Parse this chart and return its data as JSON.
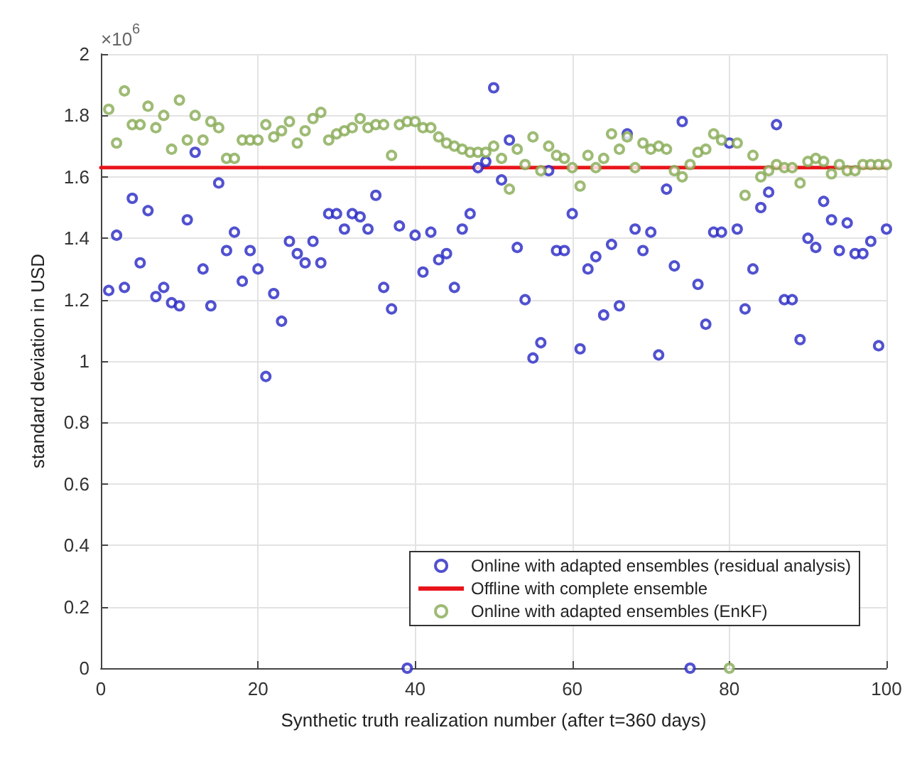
{
  "chart_data": {
    "type": "scatter",
    "xlabel": "Synthetic truth realization number (after t=360 days)",
    "ylabel": "standard deviation in USD",
    "annotations": [
      "×10$^{6}$"
    ],
    "x": [
      1,
      2,
      3,
      4,
      5,
      6,
      7,
      8,
      9,
      10,
      11,
      12,
      13,
      14,
      15,
      16,
      17,
      18,
      19,
      20,
      21,
      22,
      23,
      24,
      25,
      26,
      27,
      28,
      29,
      30,
      31,
      32,
      33,
      34,
      35,
      36,
      37,
      38,
      39,
      40,
      41,
      42,
      43,
      44,
      45,
      46,
      47,
      48,
      49,
      50,
      51,
      52,
      53,
      54,
      55,
      56,
      57,
      58,
      59,
      60,
      61,
      62,
      63,
      64,
      65,
      66,
      67,
      68,
      69,
      70,
      71,
      72,
      73,
      74,
      75,
      76,
      77,
      78,
      79,
      80,
      81,
      82,
      83,
      84,
      85,
      86,
      87,
      88,
      89,
      90,
      91,
      92,
      93,
      94,
      95,
      96,
      97,
      98,
      99,
      100
    ],
    "series": [
      {
        "name": "Online with adapted ensembles (residual analysis)",
        "type": "scatter",
        "marker": "circle",
        "color": "#2525c4",
        "values": [
          1.23,
          1.41,
          1.24,
          1.53,
          1.32,
          1.49,
          1.21,
          1.24,
          1.19,
          1.18,
          1.46,
          1.68,
          1.3,
          1.18,
          1.58,
          1.36,
          1.42,
          1.26,
          1.36,
          1.3,
          0.95,
          1.22,
          1.13,
          1.39,
          1.35,
          1.32,
          1.39,
          1.32,
          1.48,
          1.48,
          1.43,
          1.48,
          1.47,
          1.43,
          1.54,
          1.24,
          1.17,
          1.44,
          0,
          1.41,
          1.29,
          1.42,
          1.33,
          1.35,
          1.24,
          1.43,
          1.48,
          1.63,
          1.65,
          1.89,
          1.59,
          1.72,
          1.37,
          1.2,
          1.01,
          1.06,
          1.62,
          1.36,
          1.36,
          1.48,
          1.04,
          1.3,
          1.34,
          1.15,
          1.38,
          1.18,
          1.74,
          1.43,
          1.36,
          1.42,
          1.02,
          1.56,
          1.31,
          1.78,
          0,
          1.25,
          1.12,
          1.42,
          1.42,
          1.71,
          1.43,
          1.17,
          1.3,
          1.5,
          1.55,
          1.77,
          1.2,
          1.2,
          1.07,
          1.4,
          1.37,
          1.52,
          1.46,
          1.36,
          1.45,
          1.35,
          1.35,
          1.39,
          1.05,
          1.43
        ]
      },
      {
        "name": "Offline with complete ensemble",
        "type": "line",
        "marker": "none",
        "line_style": "solid",
        "color": "#e8141b",
        "x": [
          0,
          100
        ],
        "values": [
          1.63,
          1.63
        ]
      },
      {
        "name": "Online with adapted ensembles (EnKF)",
        "type": "scatter",
        "marker": "circle",
        "color": "#86aa52",
        "values": [
          1.82,
          1.71,
          1.88,
          1.77,
          1.77,
          1.83,
          1.76,
          1.8,
          1.69,
          1.85,
          1.72,
          1.8,
          1.72,
          1.78,
          1.76,
          1.66,
          1.66,
          1.72,
          1.72,
          1.72,
          1.77,
          1.73,
          1.75,
          1.78,
          1.71,
          1.75,
          1.79,
          1.81,
          1.72,
          1.74,
          1.75,
          1.76,
          1.79,
          1.76,
          1.77,
          1.77,
          1.67,
          1.77,
          1.78,
          1.78,
          1.76,
          1.76,
          1.73,
          1.71,
          1.7,
          1.69,
          1.68,
          1.68,
          1.68,
          1.7,
          1.66,
          1.56,
          1.69,
          1.64,
          1.73,
          1.62,
          1.7,
          1.67,
          1.66,
          1.63,
          1.57,
          1.67,
          1.63,
          1.66,
          1.74,
          1.69,
          1.73,
          1.63,
          1.71,
          1.69,
          1.7,
          1.69,
          1.62,
          1.6,
          1.64,
          1.68,
          1.69,
          1.74,
          1.72,
          0,
          1.71,
          1.54,
          1.67,
          1.6,
          1.62,
          1.64,
          1.63,
          1.63,
          1.58,
          1.65,
          1.66,
          1.65,
          1.61,
          1.64,
          1.62,
          1.62,
          1.64,
          1.64,
          1.64,
          1.64
        ]
      }
    ],
    "xlim": [
      0,
      100
    ],
    "xticks": [
      0,
      20,
      40,
      60,
      80,
      100
    ],
    "ylim": [
      0,
      2
    ],
    "yticks": [
      0,
      0.2,
      0.4,
      0.6,
      0.8,
      1,
      1.2,
      1.4,
      1.6,
      1.8,
      2
    ],
    "grid": true,
    "legend": "bottom right"
  }
}
